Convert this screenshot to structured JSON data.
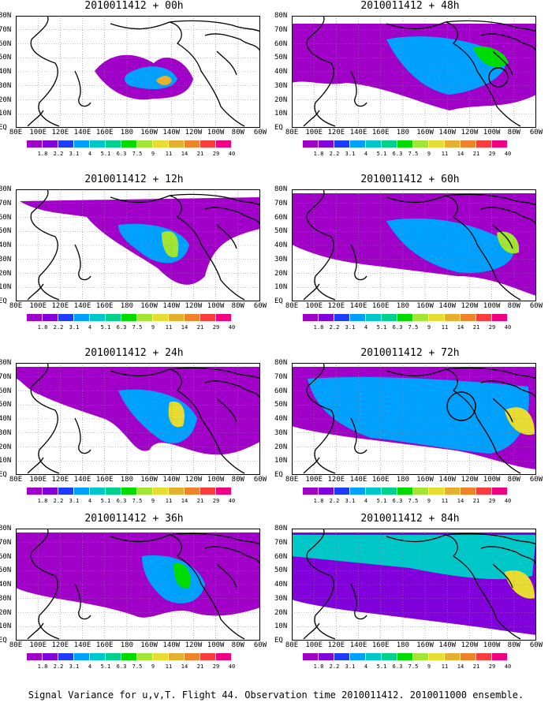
{
  "panels": [
    {
      "title": "2010011412 + 00h"
    },
    {
      "title": "2010011412 + 48h"
    },
    {
      "title": "2010011412 + 12h"
    },
    {
      "title": "2010011412 + 60h"
    },
    {
      "title": "2010011412 + 24h"
    },
    {
      "title": "2010011412 + 72h"
    },
    {
      "title": "2010011412 + 36h"
    },
    {
      "title": "2010011412 + 84h"
    }
  ],
  "lat_labels": [
    "80N",
    "70N",
    "60N",
    "50N",
    "40N",
    "30N",
    "20N",
    "10N",
    "EQ"
  ],
  "lon_labels": [
    "80E",
    "100E",
    "120E",
    "140E",
    "160E",
    "180",
    "160W",
    "140W",
    "120W",
    "100W",
    "80W",
    "60W"
  ],
  "colorbar": {
    "labels": [
      "1.8",
      "2.2",
      "3.1",
      "4",
      "5.1",
      "6.3",
      "7.5",
      "9",
      "11",
      "14",
      "21",
      "29",
      "40"
    ],
    "colors": [
      "#a000c8",
      "#8200dc",
      "#1e3cff",
      "#00a0ff",
      "#00c8c8",
      "#00d28c",
      "#00dc00",
      "#a0e632",
      "#e6dc32",
      "#e6af2d",
      "#f08228",
      "#fa3c3c",
      "#f00082"
    ]
  },
  "footer": "Signal Variance for u,v,T. Flight 44. Observation time 2010011412. 2010011000 ensemble."
}
